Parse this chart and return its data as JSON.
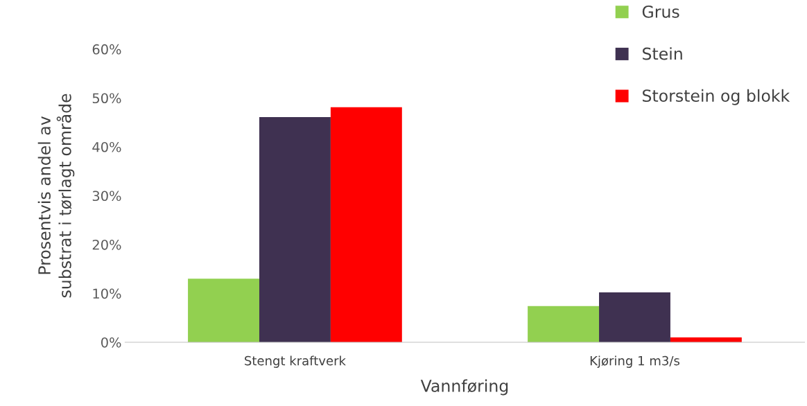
{
  "chart_data": {
    "type": "bar",
    "xlabel": "Vannføring",
    "ylabel": "Prosentvis andel av\nsubstrat i tørlagt område",
    "categories": [
      "Stengt kraftverk",
      "Kjøring 1 m3/s"
    ],
    "series": [
      {
        "name": "Grus",
        "color": "#92d050",
        "values": [
          13.0,
          7.4
        ]
      },
      {
        "name": "Stein",
        "color": "#3f3151",
        "values": [
          46.1,
          10.2
        ]
      },
      {
        "name": "Storstein og blokk",
        "color": "#ff0000",
        "values": [
          48.1,
          1.0
        ]
      }
    ],
    "ylim": [
      0,
      60
    ],
    "yticks": [
      {
        "value": 0,
        "label": "0%"
      },
      {
        "value": 10,
        "label": "10%"
      },
      {
        "value": 20,
        "label": "20%"
      },
      {
        "value": 30,
        "label": "30%"
      },
      {
        "value": 40,
        "label": "40%"
      },
      {
        "value": 50,
        "label": "50%"
      },
      {
        "value": 60,
        "label": "60%"
      }
    ],
    "grid": false,
    "legend": "top right"
  }
}
